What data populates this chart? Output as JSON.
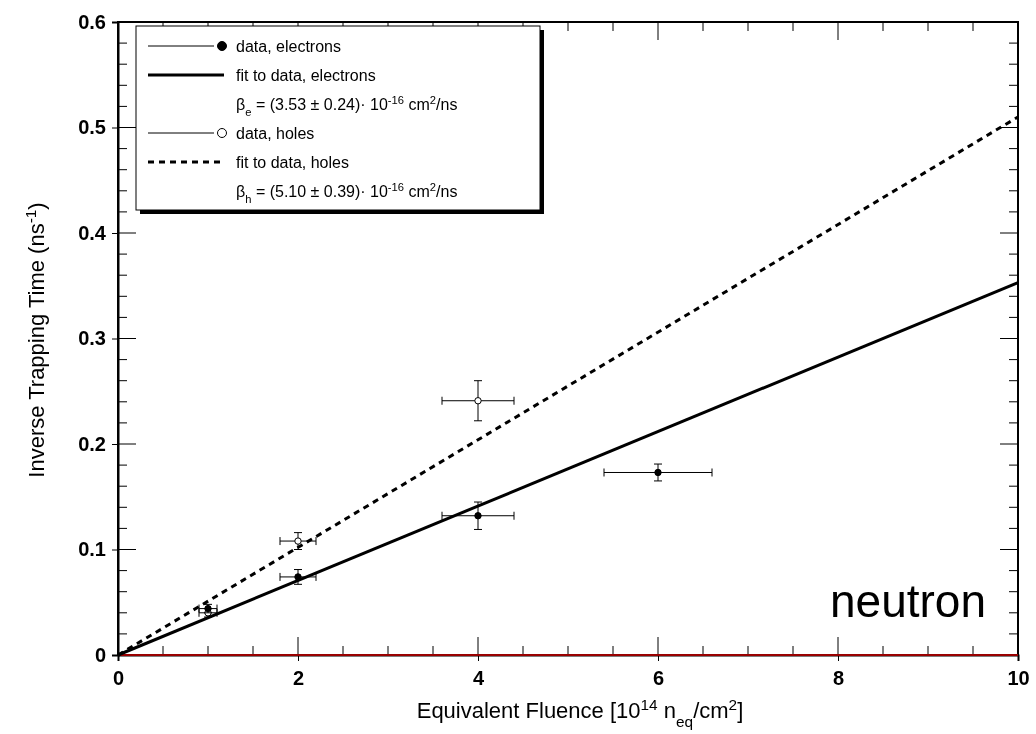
{
  "chart_data": {
    "type": "scatter",
    "xlabel": "Equivalent Fluence [10$^{14}$ n$_{eq}$/cm$^{2}$]",
    "ylabel": "Inverse Trapping Time (ns$^{-1}$)",
    "xlim": [
      0,
      10
    ],
    "ylim": [
      0,
      0.6
    ],
    "xticks": [
      0,
      2,
      4,
      6,
      8,
      10
    ],
    "yticks": [
      0,
      0.1,
      0.2,
      0.3,
      0.4,
      0.5,
      0.6
    ],
    "grid": false,
    "legend": "top left",
    "marker": "circle",
    "series": [
      {
        "name": "data, electrons",
        "color": "#000000",
        "x": [
          1,
          2,
          4,
          6
        ],
        "values": [
          0.044,
          0.074,
          0.132,
          0.173
        ],
        "errors": [
          0.004,
          0.007,
          0.013,
          0.008
        ],
        "xerrors": [
          0.1,
          0.2,
          0.4,
          0.6
        ]
      },
      {
        "name": "fit to data, electrons",
        "type": "line",
        "color": "#000000",
        "line_style": "solid",
        "marker": "none",
        "x": [
          0,
          10
        ],
        "values": [
          0,
          0.353
        ]
      },
      {
        "name": "data, holes",
        "color": "#ffffff",
        "x": [
          1,
          2,
          4
        ],
        "values": [
          0.04,
          0.108,
          0.241
        ],
        "errors": [
          0.004,
          0.008,
          0.019
        ],
        "xerrors": [
          0.1,
          0.2,
          0.4
        ]
      },
      {
        "name": "fit to data, holes",
        "type": "line",
        "color": "#000000",
        "line_style": "dashed",
        "marker": "none",
        "x": [
          0,
          10
        ],
        "values": [
          0,
          0.51
        ]
      }
    ],
    "ref_lines": [
      {
        "axis": "y",
        "value": 0,
        "color": "#cc0000"
      }
    ],
    "annotations": [
      "β$_{e}$ =  (3.53 ± 0.24)· 10$^{-16}$ cm$^{2}$/ns",
      "β$_{h}$ =  (5.10 ± 0.39)· 10$^{-16}$ cm$^{2}$/ns",
      "neutron"
    ]
  }
}
